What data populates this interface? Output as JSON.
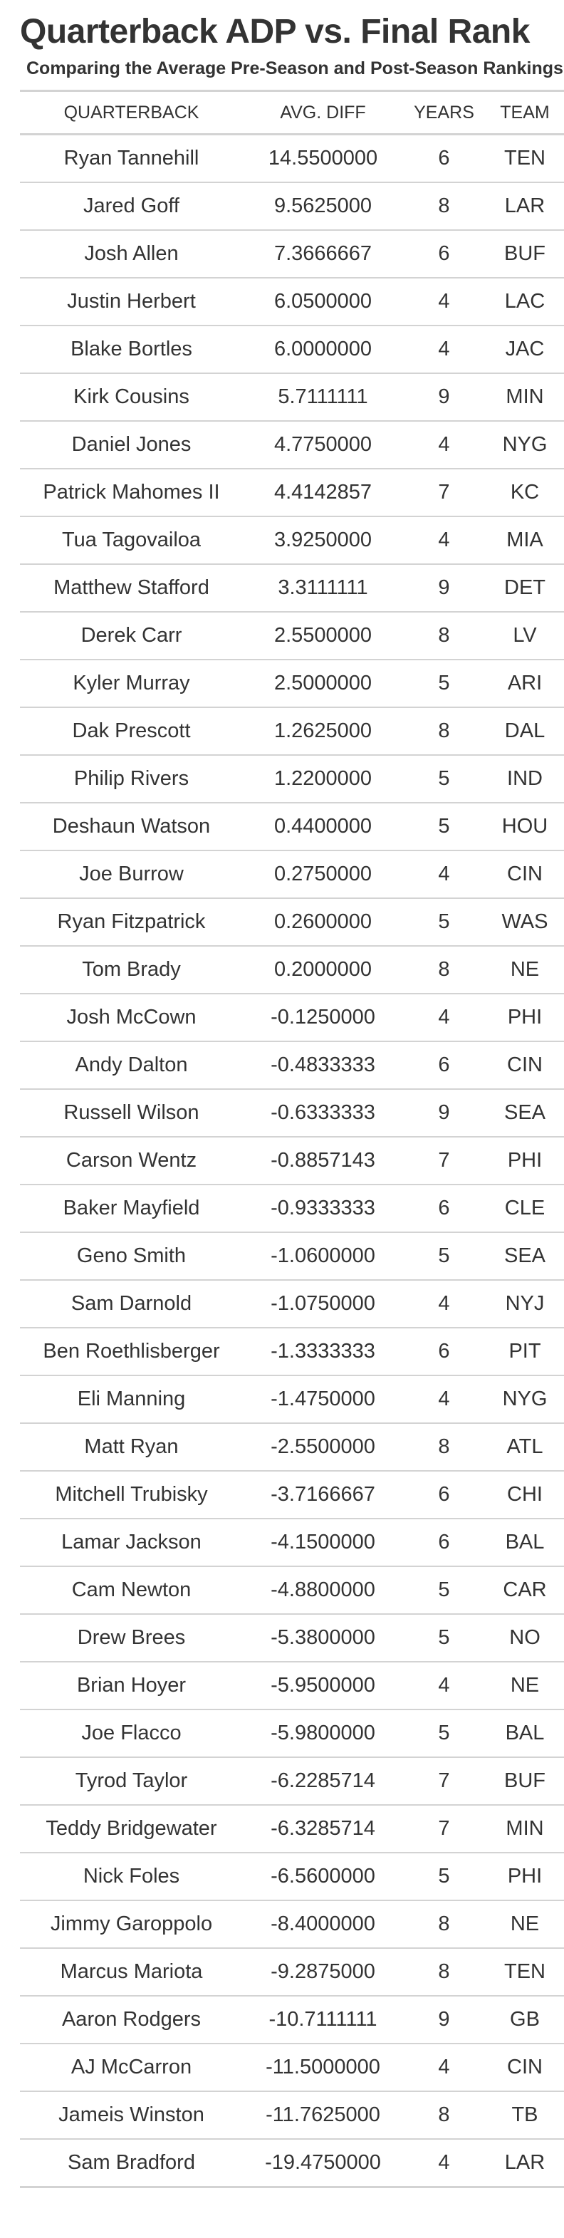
{
  "header": {
    "title": "Quarterback ADP vs. Final Rank",
    "subtitle": "Comparing the Average Pre-Season and Post-Season Rankings"
  },
  "table": {
    "columns": [
      "QUARTERBACK",
      "AVG. DIFF",
      "YEARS",
      "TEAM"
    ],
    "rows": [
      [
        "Ryan Tannehill",
        "14.5500000",
        "6",
        "TEN"
      ],
      [
        "Jared Goff",
        "9.5625000",
        "8",
        "LAR"
      ],
      [
        "Josh Allen",
        "7.3666667",
        "6",
        "BUF"
      ],
      [
        "Justin Herbert",
        "6.0500000",
        "4",
        "LAC"
      ],
      [
        "Blake Bortles",
        "6.0000000",
        "4",
        "JAC"
      ],
      [
        "Kirk Cousins",
        "5.7111111",
        "9",
        "MIN"
      ],
      [
        "Daniel Jones",
        "4.7750000",
        "4",
        "NYG"
      ],
      [
        "Patrick Mahomes II",
        "4.4142857",
        "7",
        "KC"
      ],
      [
        "Tua Tagovailoa",
        "3.9250000",
        "4",
        "MIA"
      ],
      [
        "Matthew Stafford",
        "3.3111111",
        "9",
        "DET"
      ],
      [
        "Derek Carr",
        "2.5500000",
        "8",
        "LV"
      ],
      [
        "Kyler Murray",
        "2.5000000",
        "5",
        "ARI"
      ],
      [
        "Dak Prescott",
        "1.2625000",
        "8",
        "DAL"
      ],
      [
        "Philip Rivers",
        "1.2200000",
        "5",
        "IND"
      ],
      [
        "Deshaun Watson",
        "0.4400000",
        "5",
        "HOU"
      ],
      [
        "Joe Burrow",
        "0.2750000",
        "4",
        "CIN"
      ],
      [
        "Ryan Fitzpatrick",
        "0.2600000",
        "5",
        "WAS"
      ],
      [
        "Tom Brady",
        "0.2000000",
        "8",
        "NE"
      ],
      [
        "Josh McCown",
        "-0.1250000",
        "4",
        "PHI"
      ],
      [
        "Andy Dalton",
        "-0.4833333",
        "6",
        "CIN"
      ],
      [
        "Russell Wilson",
        "-0.6333333",
        "9",
        "SEA"
      ],
      [
        "Carson Wentz",
        "-0.8857143",
        "7",
        "PHI"
      ],
      [
        "Baker Mayfield",
        "-0.9333333",
        "6",
        "CLE"
      ],
      [
        "Geno Smith",
        "-1.0600000",
        "5",
        "SEA"
      ],
      [
        "Sam Darnold",
        "-1.0750000",
        "4",
        "NYJ"
      ],
      [
        "Ben Roethlisberger",
        "-1.3333333",
        "6",
        "PIT"
      ],
      [
        "Eli Manning",
        "-1.4750000",
        "4",
        "NYG"
      ],
      [
        "Matt Ryan",
        "-2.5500000",
        "8",
        "ATL"
      ],
      [
        "Mitchell Trubisky",
        "-3.7166667",
        "6",
        "CHI"
      ],
      [
        "Lamar Jackson",
        "-4.1500000",
        "6",
        "BAL"
      ],
      [
        "Cam Newton",
        "-4.8800000",
        "5",
        "CAR"
      ],
      [
        "Drew Brees",
        "-5.3800000",
        "5",
        "NO"
      ],
      [
        "Brian Hoyer",
        "-5.9500000",
        "4",
        "NE"
      ],
      [
        "Joe Flacco",
        "-5.9800000",
        "5",
        "BAL"
      ],
      [
        "Tyrod Taylor",
        "-6.2285714",
        "7",
        "BUF"
      ],
      [
        "Teddy Bridgewater",
        "-6.3285714",
        "7",
        "MIN"
      ],
      [
        "Nick Foles",
        "-6.5600000",
        "5",
        "PHI"
      ],
      [
        "Jimmy Garoppolo",
        "-8.4000000",
        "8",
        "NE"
      ],
      [
        "Marcus Mariota",
        "-9.2875000",
        "8",
        "TEN"
      ],
      [
        "Aaron Rodgers",
        "-10.7111111",
        "9",
        "GB"
      ],
      [
        "AJ McCarron",
        "-11.5000000",
        "4",
        "CIN"
      ],
      [
        "Jameis Winston",
        "-11.7625000",
        "8",
        "TB"
      ],
      [
        "Sam Bradford",
        "-19.4750000",
        "4",
        "LAR"
      ]
    ]
  }
}
